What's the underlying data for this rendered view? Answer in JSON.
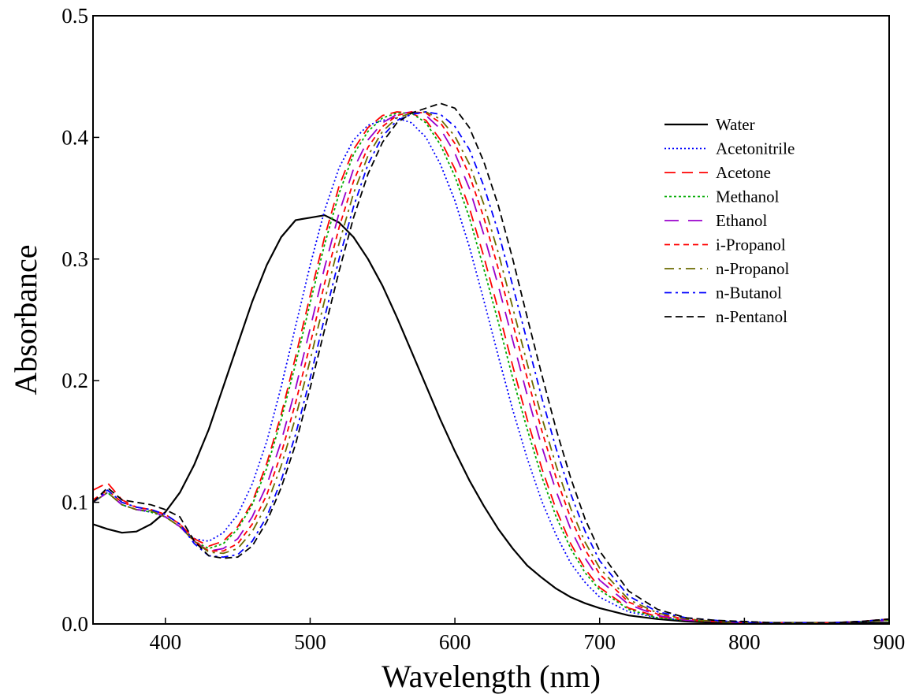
{
  "chart_data": {
    "type": "line",
    "title": "",
    "xlabel": "Wavelength (nm)",
    "ylabel": "Absorbance",
    "xlim": [
      350,
      900
    ],
    "ylim": [
      0.0,
      0.5
    ],
    "xticks": [
      400,
      500,
      600,
      700,
      800,
      900
    ],
    "xtick_labels": [
      "400",
      "500",
      "600",
      "700",
      "800",
      "900"
    ],
    "yticks": [
      0.0,
      0.1,
      0.2,
      0.3,
      0.4,
      0.5
    ],
    "ytick_labels": [
      "0.0",
      "0.1",
      "0.2",
      "0.3",
      "0.4",
      "0.5"
    ],
    "grid": false,
    "legend_position": "top-right",
    "x": [
      350,
      360,
      370,
      380,
      390,
      400,
      410,
      420,
      430,
      440,
      450,
      460,
      470,
      480,
      490,
      500,
      510,
      520,
      530,
      540,
      550,
      560,
      570,
      580,
      590,
      600,
      610,
      620,
      630,
      640,
      650,
      660,
      670,
      680,
      690,
      700,
      720,
      740,
      760,
      780,
      800,
      820,
      840,
      860,
      880,
      900
    ],
    "series": [
      {
        "name": "Water",
        "color": "#000000",
        "dash": "solid",
        "values": [
          0.082,
          0.078,
          0.075,
          0.076,
          0.082,
          0.092,
          0.108,
          0.131,
          0.16,
          0.195,
          0.23,
          0.265,
          0.295,
          0.318,
          0.332,
          0.334,
          0.336,
          0.33,
          0.318,
          0.3,
          0.278,
          0.252,
          0.224,
          0.196,
          0.168,
          0.142,
          0.118,
          0.097,
          0.078,
          0.062,
          0.048,
          0.038,
          0.029,
          0.022,
          0.017,
          0.013,
          0.007,
          0.004,
          0.002,
          0.001,
          0.001,
          0.001,
          0.001,
          0.001,
          0.001,
          0.001
        ]
      },
      {
        "name": "Acetonitrile",
        "color": "#0000ff",
        "dash": "dot",
        "values": [
          0.1,
          0.108,
          0.098,
          0.094,
          0.092,
          0.088,
          0.08,
          0.07,
          0.068,
          0.075,
          0.09,
          0.115,
          0.15,
          0.195,
          0.245,
          0.295,
          0.34,
          0.375,
          0.398,
          0.41,
          0.414,
          0.416,
          0.412,
          0.4,
          0.378,
          0.348,
          0.31,
          0.266,
          0.22,
          0.176,
          0.136,
          0.101,
          0.073,
          0.05,
          0.034,
          0.022,
          0.01,
          0.005,
          0.003,
          0.002,
          0.002,
          0.001,
          0.001,
          0.001,
          0.002,
          0.003
        ]
      },
      {
        "name": "Acetone",
        "color": "#ff0000",
        "dash": "longdash",
        "values": [
          0.11,
          0.116,
          0.102,
          0.096,
          0.094,
          0.09,
          0.082,
          0.07,
          0.064,
          0.068,
          0.08,
          0.1,
          0.132,
          0.172,
          0.22,
          0.27,
          0.318,
          0.36,
          0.39,
          0.408,
          0.418,
          0.421,
          0.42,
          0.414,
          0.398,
          0.374,
          0.342,
          0.302,
          0.258,
          0.212,
          0.168,
          0.128,
          0.094,
          0.066,
          0.045,
          0.03,
          0.013,
          0.006,
          0.003,
          0.002,
          0.001,
          0.001,
          0.001,
          0.001,
          0.002,
          0.004
        ]
      },
      {
        "name": "Methanol",
        "color": "#00aa00",
        "dash": "densedot",
        "values": [
          0.1,
          0.108,
          0.098,
          0.094,
          0.092,
          0.088,
          0.08,
          0.068,
          0.062,
          0.066,
          0.078,
          0.098,
          0.128,
          0.168,
          0.214,
          0.264,
          0.312,
          0.354,
          0.386,
          0.405,
          0.416,
          0.42,
          0.42,
          0.412,
          0.394,
          0.368,
          0.334,
          0.292,
          0.248,
          0.202,
          0.16,
          0.121,
          0.088,
          0.062,
          0.042,
          0.028,
          0.012,
          0.005,
          0.003,
          0.002,
          0.001,
          0.001,
          0.001,
          0.001,
          0.002,
          0.003
        ]
      },
      {
        "name": "Ethanol",
        "color": "#9900cc",
        "dash": "longdashgap",
        "values": [
          0.1,
          0.108,
          0.098,
          0.094,
          0.093,
          0.088,
          0.08,
          0.068,
          0.06,
          0.062,
          0.07,
          0.088,
          0.114,
          0.15,
          0.194,
          0.243,
          0.293,
          0.338,
          0.374,
          0.398,
          0.412,
          0.419,
          0.421,
          0.418,
          0.407,
          0.387,
          0.358,
          0.32,
          0.278,
          0.233,
          0.188,
          0.146,
          0.109,
          0.078,
          0.054,
          0.036,
          0.016,
          0.007,
          0.003,
          0.002,
          0.001,
          0.001,
          0.001,
          0.001,
          0.002,
          0.003
        ]
      },
      {
        "name": "i-Propanol",
        "color": "#ff0000",
        "dash": "shortdash",
        "values": [
          0.102,
          0.11,
          0.1,
          0.096,
          0.094,
          0.09,
          0.082,
          0.068,
          0.06,
          0.06,
          0.066,
          0.082,
          0.106,
          0.14,
          0.182,
          0.23,
          0.28,
          0.326,
          0.364,
          0.392,
          0.409,
          0.418,
          0.421,
          0.42,
          0.412,
          0.395,
          0.369,
          0.334,
          0.292,
          0.247,
          0.202,
          0.159,
          0.12,
          0.087,
          0.061,
          0.041,
          0.018,
          0.008,
          0.004,
          0.002,
          0.001,
          0.001,
          0.001,
          0.001,
          0.002,
          0.004
        ]
      },
      {
        "name": "n-Propanol",
        "color": "#6b6b00",
        "dash": "dashdot",
        "values": [
          0.1,
          0.108,
          0.098,
          0.094,
          0.093,
          0.088,
          0.08,
          0.068,
          0.059,
          0.058,
          0.062,
          0.076,
          0.098,
          0.13,
          0.17,
          0.217,
          0.266,
          0.313,
          0.354,
          0.385,
          0.405,
          0.416,
          0.42,
          0.421,
          0.415,
          0.401,
          0.378,
          0.345,
          0.305,
          0.26,
          0.214,
          0.17,
          0.13,
          0.095,
          0.067,
          0.046,
          0.02,
          0.009,
          0.004,
          0.002,
          0.001,
          0.001,
          0.001,
          0.001,
          0.002,
          0.003
        ]
      },
      {
        "name": "n-Butanol",
        "color": "#0000ff",
        "dash": "dashdot2",
        "values": [
          0.1,
          0.11,
          0.1,
          0.096,
          0.094,
          0.09,
          0.082,
          0.066,
          0.056,
          0.055,
          0.057,
          0.068,
          0.088,
          0.118,
          0.156,
          0.202,
          0.252,
          0.3,
          0.343,
          0.378,
          0.401,
          0.414,
          0.419,
          0.421,
          0.419,
          0.409,
          0.39,
          0.36,
          0.322,
          0.278,
          0.232,
          0.186,
          0.144,
          0.107,
          0.076,
          0.052,
          0.023,
          0.01,
          0.005,
          0.003,
          0.001,
          0.001,
          0.001,
          0.001,
          0.002,
          0.004
        ]
      },
      {
        "name": "n-Pentanol",
        "color": "#000000",
        "dash": "dash",
        "values": [
          0.1,
          0.112,
          0.102,
          0.1,
          0.098,
          0.094,
          0.088,
          0.068,
          0.056,
          0.054,
          0.055,
          0.064,
          0.084,
          0.112,
          0.148,
          0.194,
          0.242,
          0.29,
          0.334,
          0.37,
          0.396,
          0.412,
          0.42,
          0.424,
          0.428,
          0.424,
          0.408,
          0.38,
          0.344,
          0.3,
          0.252,
          0.205,
          0.16,
          0.12,
          0.086,
          0.06,
          0.027,
          0.012,
          0.005,
          0.003,
          0.002,
          0.001,
          0.001,
          0.001,
          0.002,
          0.004
        ]
      }
    ]
  }
}
